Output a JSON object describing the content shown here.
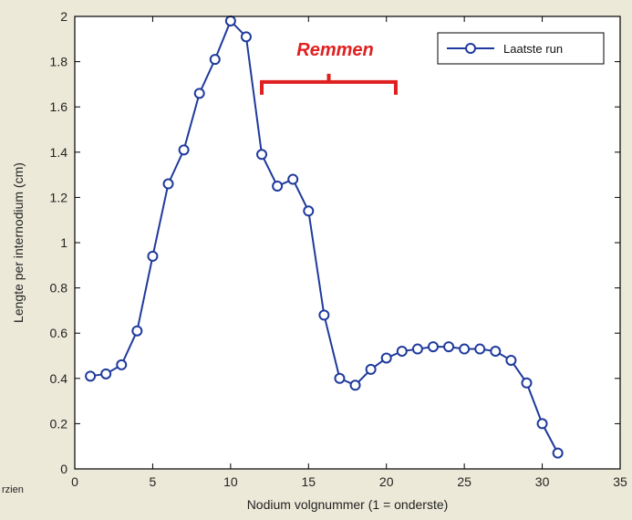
{
  "side_label": "rzien",
  "colors": {
    "background": "#ece9d8",
    "plot_area": "#ffffff",
    "series": "#1f3a9c",
    "annotation": "#e02020",
    "axis": "#000000"
  },
  "chart_data": {
    "type": "line",
    "title": "",
    "xlabel": "Nodium volgnummer (1 = onderste)",
    "ylabel": "Lengte per internodium (cm)",
    "xlim": [
      0,
      35
    ],
    "ylim": [
      0,
      2
    ],
    "xticks": [
      0,
      5,
      10,
      15,
      20,
      25,
      30,
      35
    ],
    "xtick_labels": [
      "0",
      "5",
      "10",
      "15",
      "20",
      "25",
      "30",
      "35"
    ],
    "yticks": [
      0,
      0.2,
      0.4,
      0.6,
      0.8,
      1,
      1.2,
      1.4,
      1.6,
      1.8,
      2
    ],
    "ytick_labels": [
      "0",
      "0.2",
      "0.4",
      "0.6",
      "0.8",
      "1",
      "1.2",
      "1.4",
      "1.6",
      "1.8",
      "2"
    ],
    "grid": false,
    "legend_position": "top-right",
    "marker": "circle",
    "series": [
      {
        "name": "Laatste run",
        "x": [
          1,
          2,
          3,
          4,
          5,
          6,
          7,
          8,
          9,
          10,
          11,
          12,
          13,
          14,
          15,
          16,
          17,
          18,
          19,
          20,
          21,
          22,
          23,
          24,
          25,
          26,
          27,
          28,
          29,
          30,
          31
        ],
        "values": [
          0.41,
          0.42,
          0.46,
          0.61,
          0.94,
          1.26,
          1.41,
          1.66,
          1.81,
          1.98,
          1.91,
          1.39,
          1.25,
          1.28,
          1.14,
          0.68,
          0.4,
          0.37,
          0.44,
          0.49,
          0.52,
          0.53,
          0.54,
          0.54,
          0.53,
          0.53,
          0.52,
          0.48,
          0.38,
          0.2,
          0.07
        ]
      }
    ],
    "annotations": [
      {
        "text": "Remmen",
        "bracket_start_x": 12,
        "bracket_end_x": 20.6,
        "bracket_level_y": 1.71,
        "bracket_peak_x": 16.3
      }
    ]
  }
}
